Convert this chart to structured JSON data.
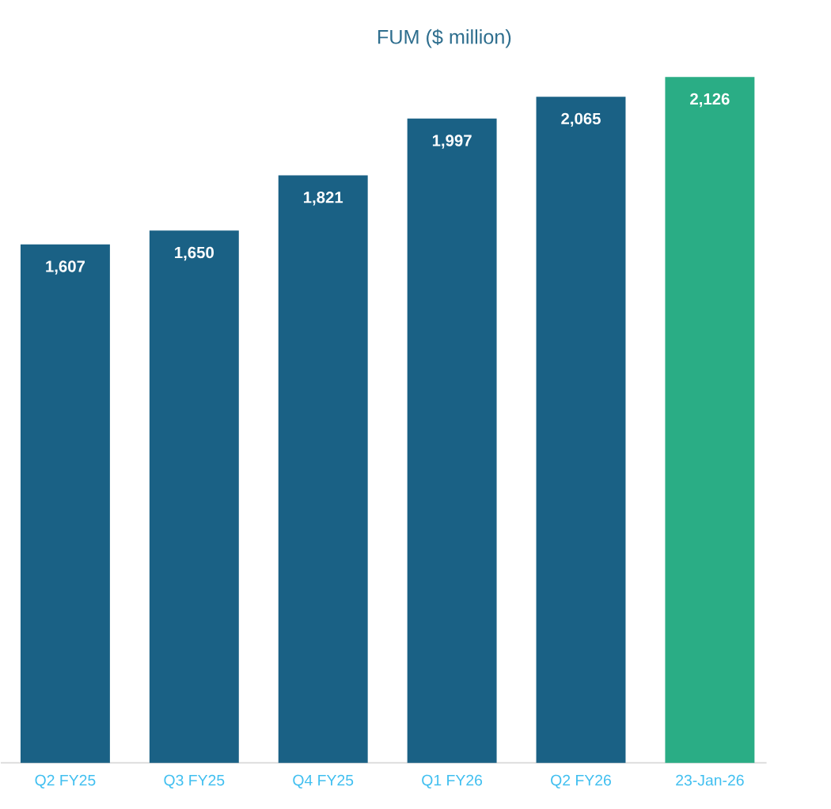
{
  "chart_data": {
    "type": "bar",
    "title": "FUM ($ million)",
    "categories": [
      "Q2 FY25",
      "Q3 FY25",
      "Q4 FY25",
      "Q1 FY26",
      "Q2 FY26",
      "23-Jan-26"
    ],
    "values": [
      1607,
      1650,
      1821,
      1997,
      2065,
      2126
    ],
    "value_labels": [
      "1,607",
      "1,650",
      "1,821",
      "1,997",
      "2,065",
      "2,126"
    ],
    "colors": [
      "#1a6185",
      "#1a6185",
      "#1a6185",
      "#1a6185",
      "#1a6185",
      "#2aad85"
    ],
    "tick_labels": "x"
  }
}
